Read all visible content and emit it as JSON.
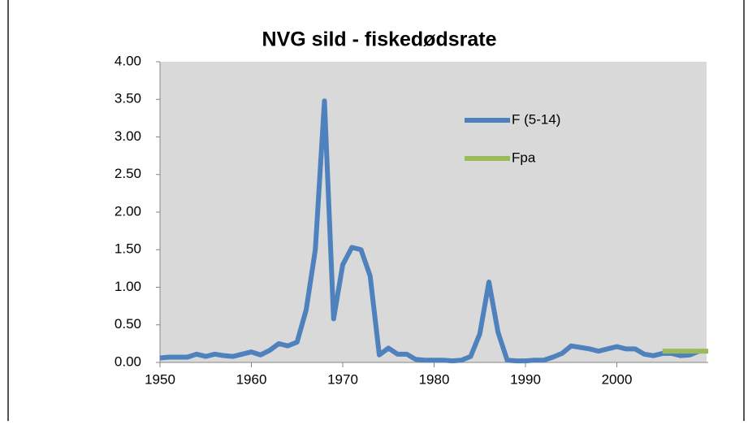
{
  "chart_data": {
    "type": "line",
    "title": "NVG sild  - fiskedødsrate",
    "x": [
      1950,
      1951,
      1952,
      1953,
      1954,
      1955,
      1956,
      1957,
      1958,
      1959,
      1960,
      1961,
      1962,
      1963,
      1964,
      1965,
      1966,
      1967,
      1968,
      1969,
      1970,
      1971,
      1972,
      1973,
      1974,
      1975,
      1976,
      1977,
      1978,
      1979,
      1980,
      1981,
      1982,
      1983,
      1984,
      1985,
      1986,
      1987,
      1988,
      1989,
      1990,
      1991,
      1992,
      1993,
      1994,
      1995,
      1996,
      1997,
      1998,
      1999,
      2000,
      2001,
      2002,
      2003,
      2004,
      2005,
      2006,
      2007,
      2008,
      2009
    ],
    "series": [
      {
        "name": "F (5-14)",
        "color": "#4f81bd",
        "values": [
          0.06,
          0.07,
          0.07,
          0.07,
          0.11,
          0.08,
          0.11,
          0.09,
          0.08,
          0.11,
          0.14,
          0.1,
          0.16,
          0.25,
          0.22,
          0.27,
          0.7,
          1.5,
          3.48,
          0.58,
          1.3,
          1.53,
          1.5,
          1.15,
          0.1,
          0.19,
          0.11,
          0.11,
          0.04,
          0.03,
          0.03,
          0.03,
          0.02,
          0.03,
          0.08,
          0.38,
          1.07,
          0.4,
          0.03,
          0.02,
          0.02,
          0.03,
          0.03,
          0.07,
          0.12,
          0.22,
          0.2,
          0.18,
          0.15,
          0.18,
          0.21,
          0.18,
          0.18,
          0.11,
          0.09,
          0.12,
          0.12,
          0.09,
          0.1,
          0.15
        ]
      },
      {
        "name": "Fpa",
        "color": "#9bbb59",
        "x": [
          2005,
          2010
        ],
        "values": [
          0.15,
          0.15
        ]
      }
    ],
    "xlim": [
      1950,
      2010
    ],
    "xticks": [
      1950,
      1960,
      1970,
      1980,
      1990,
      2000
    ],
    "ylim": [
      0,
      4
    ],
    "yticks": [
      {
        "value": 0,
        "label": "0.00"
      },
      {
        "value": 0.5,
        "label": "0.50"
      },
      {
        "value": 1,
        "label": "1.00"
      },
      {
        "value": 1.5,
        "label": "1.50"
      },
      {
        "value": 2,
        "label": "2.00"
      },
      {
        "value": 2.5,
        "label": "2.50"
      },
      {
        "value": 3,
        "label": "3.00"
      },
      {
        "value": 3.5,
        "label": "3.50"
      },
      {
        "value": 4,
        "label": "4.00"
      }
    ],
    "grid": false,
    "legend": "upper right"
  }
}
